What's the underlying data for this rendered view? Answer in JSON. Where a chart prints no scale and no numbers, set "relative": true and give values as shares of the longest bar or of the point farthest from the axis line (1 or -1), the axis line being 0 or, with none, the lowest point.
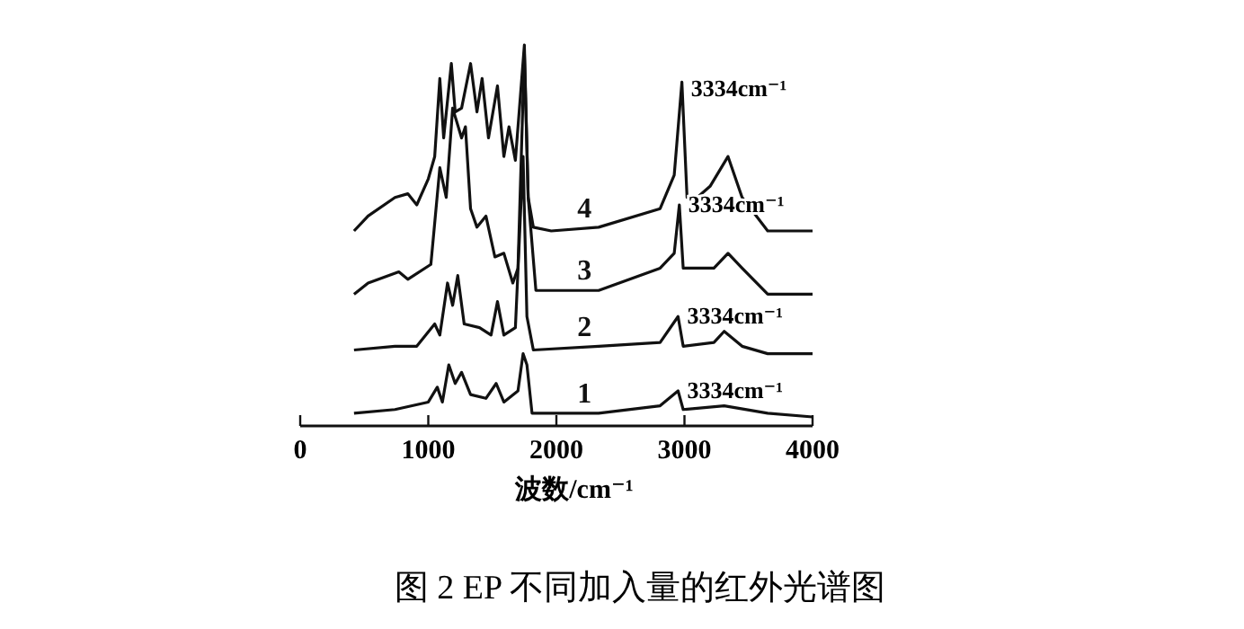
{
  "chart_data": {
    "type": "line",
    "relative": true,
    "title": "图 2   EP 不同加入量的红外光谱图",
    "xlabel": "波数/cm⁻¹",
    "xlim": [
      0,
      4000
    ],
    "xticks": [
      0,
      1000,
      2000,
      3000,
      4000
    ],
    "grid": false,
    "line_style": "solid",
    "annotations": [
      "3334cm⁻¹",
      "3334cm⁻¹",
      "3334cm⁻¹",
      "3334cm⁻¹"
    ],
    "series": [
      {
        "name": "1",
        "color": "#111111",
        "x": [
          420,
          740,
          1000,
          1070,
          1110,
          1160,
          1210,
          1260,
          1330,
          1450,
          1530,
          1590,
          1700,
          1740,
          1770,
          1810,
          2330,
          2810,
          2950,
          2990,
          3310,
          3650,
          4000
        ],
        "values": [
          0.01,
          0.02,
          0.04,
          0.08,
          0.04,
          0.14,
          0.09,
          0.12,
          0.06,
          0.05,
          0.09,
          0.04,
          0.07,
          0.17,
          0.14,
          0.01,
          0.01,
          0.03,
          0.07,
          0.02,
          0.03,
          0.01,
          0
        ]
      },
      {
        "name": "2",
        "color": "#111111",
        "x": [
          420,
          740,
          910,
          1050,
          1090,
          1150,
          1190,
          1230,
          1280,
          1400,
          1490,
          1540,
          1590,
          1680,
          1740,
          1770,
          1820,
          2330,
          2810,
          2950,
          2990,
          3230,
          3310,
          3450,
          3650,
          4000
        ],
        "values": [
          0.18,
          0.19,
          0.19,
          0.25,
          0.22,
          0.36,
          0.3,
          0.38,
          0.25,
          0.24,
          0.22,
          0.31,
          0.22,
          0.24,
          0.7,
          0.27,
          0.18,
          0.19,
          0.2,
          0.27,
          0.19,
          0.2,
          0.23,
          0.19,
          0.17,
          0.17
        ]
      },
      {
        "name": "3",
        "color": "#111111",
        "x": [
          420,
          530,
          770,
          840,
          1020,
          1090,
          1140,
          1190,
          1260,
          1290,
          1330,
          1380,
          1450,
          1520,
          1590,
          1660,
          1700,
          1750,
          1780,
          1840,
          2330,
          2810,
          2920,
          2960,
          2990,
          3230,
          3340,
          3450,
          3650,
          4000
        ],
        "values": [
          0.33,
          0.36,
          0.39,
          0.37,
          0.41,
          0.67,
          0.59,
          0.83,
          0.75,
          0.78,
          0.56,
          0.51,
          0.54,
          0.43,
          0.44,
          0.36,
          0.4,
          0.98,
          0.59,
          0.34,
          0.34,
          0.4,
          0.44,
          0.57,
          0.4,
          0.4,
          0.44,
          0.4,
          0.33,
          0.33
        ]
      },
      {
        "name": "4",
        "color": "#111111",
        "x": [
          420,
          530,
          740,
          840,
          910,
          1000,
          1050,
          1090,
          1120,
          1180,
          1210,
          1260,
          1330,
          1380,
          1420,
          1470,
          1540,
          1590,
          1630,
          1680,
          1750,
          1780,
          1820,
          1960,
          2330,
          2810,
          2920,
          2980,
          3020,
          3100,
          3200,
          3340,
          3450,
          3650,
          4000
        ],
        "values": [
          0.5,
          0.54,
          0.59,
          0.6,
          0.57,
          0.64,
          0.7,
          0.91,
          0.75,
          0.95,
          0.82,
          0.83,
          0.95,
          0.82,
          0.91,
          0.75,
          0.89,
          0.7,
          0.78,
          0.69,
          1.0,
          0.59,
          0.51,
          0.5,
          0.51,
          0.56,
          0.65,
          0.9,
          0.59,
          0.59,
          0.62,
          0.7,
          0.59,
          0.5,
          0.5
        ]
      }
    ]
  }
}
